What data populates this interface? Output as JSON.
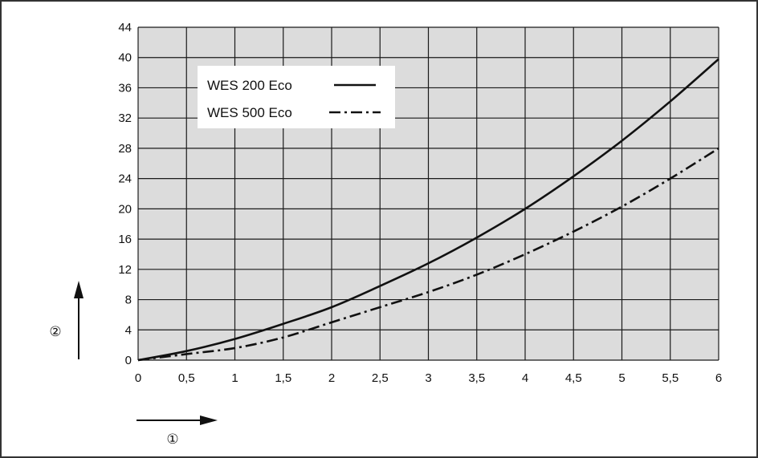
{
  "chart_data": {
    "type": "line",
    "title": "",
    "xlabel": "",
    "ylabel": "",
    "xlim": [
      0,
      6
    ],
    "ylim": [
      0,
      44
    ],
    "x_ticks": [
      0,
      0.5,
      1,
      1.5,
      2,
      2.5,
      3,
      3.5,
      4,
      4.5,
      5,
      5.5,
      6
    ],
    "x_tick_labels": [
      "0",
      "0,5",
      "1",
      "1,5",
      "2",
      "2,5",
      "3",
      "3,5",
      "4",
      "4,5",
      "5",
      "5,5",
      "6"
    ],
    "y_ticks": [
      0,
      4,
      8,
      12,
      16,
      20,
      24,
      28,
      32,
      36,
      40,
      44
    ],
    "y_tick_labels": [
      "0",
      "4",
      "8",
      "12",
      "16",
      "20",
      "24",
      "28",
      "32",
      "36",
      "40",
      "44"
    ],
    "grid": true,
    "legend_position": "top-left",
    "x_axis_marker": "①",
    "y_axis_marker": "②",
    "series": [
      {
        "name": "WES 200 Eco",
        "line_style": "solid",
        "x": [
          0,
          0.5,
          1,
          1.5,
          2,
          2.5,
          3,
          3.5,
          4,
          4.5,
          5,
          5.5,
          6
        ],
        "y": [
          0,
          1.2,
          2.8,
          4.8,
          7.0,
          9.8,
          12.8,
          16.2,
          20.0,
          24.3,
          29.0,
          34.2,
          39.8
        ]
      },
      {
        "name": "WES 500 Eco",
        "line_style": "dash-dot",
        "x": [
          0,
          0.5,
          1,
          1.5,
          2,
          2.5,
          3,
          3.5,
          4,
          4.5,
          5,
          5.5,
          6
        ],
        "y": [
          0,
          0.8,
          1.6,
          3.0,
          5.0,
          7.0,
          9.0,
          11.3,
          14.0,
          17.0,
          20.3,
          24.0,
          28.0
        ]
      }
    ],
    "colors": {
      "plot_bg": "#dcdcdc",
      "grid": "#1a1a1a",
      "line": "#111111",
      "frame": "#333333"
    }
  }
}
